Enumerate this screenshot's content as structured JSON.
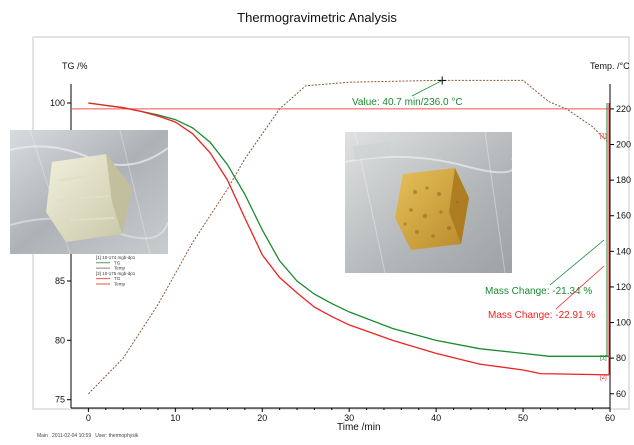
{
  "chart_data": {
    "type": "line",
    "title": "Thermogravimetric Analysis",
    "xlabel": "Time /min",
    "ylabel_left": "TG /%",
    "ylabel_right": "Temp. /°C",
    "xlim": [
      -2,
      60
    ],
    "ylim_left": [
      74.3,
      101.6
    ],
    "ylim_right": [
      52,
      234
    ],
    "x_ticks": [
      0,
      10,
      20,
      30,
      40,
      50,
      60
    ],
    "y_left_ticks": [
      75,
      80,
      85,
      100
    ],
    "y_right_ticks": [
      60,
      80,
      100,
      120,
      140,
      160,
      180,
      200,
      220
    ],
    "grid": false,
    "colors": {
      "axes": "#000000",
      "series_1": "#1a8a2e",
      "series_2": "#ee2222",
      "temperature": "#8a5a3a",
      "reference_line": "#ff4d4d",
      "value_label": "#1a8a2e"
    },
    "series": [
      {
        "name": "[1] 10-174 mgb-dp1 TG",
        "axis": "left",
        "x": [
          0,
          2,
          4,
          6,
          8,
          10,
          12,
          14,
          16,
          18,
          20,
          22,
          24,
          26,
          28,
          30,
          35,
          40,
          45,
          50,
          53,
          60
        ],
        "y": [
          100,
          99.8,
          99.6,
          99.3,
          99.0,
          98.6,
          97.9,
          96.7,
          94.8,
          92.3,
          89.3,
          86.7,
          85.0,
          83.9,
          83.1,
          82.4,
          81.0,
          80.0,
          79.3,
          78.9,
          78.66,
          78.66
        ]
      },
      {
        "name": "[2] 10-175 mgb-dp1 TG",
        "axis": "left",
        "x": [
          0,
          2,
          4,
          6,
          8,
          10,
          12,
          14,
          16,
          18,
          20,
          22,
          24,
          26,
          28,
          30,
          35,
          40,
          45,
          50,
          52,
          60
        ],
        "y": [
          100,
          99.8,
          99.6,
          99.3,
          98.9,
          98.4,
          97.4,
          95.8,
          93.5,
          90.3,
          87.2,
          85.3,
          84.0,
          82.8,
          82.0,
          81.3,
          80.0,
          78.9,
          78.0,
          77.5,
          77.2,
          77.09
        ]
      },
      {
        "name": "Temp",
        "axis": "right",
        "x": [
          0,
          4,
          8,
          12,
          16,
          18,
          20,
          22,
          25,
          30,
          40,
          50,
          51,
          53,
          55,
          58,
          60
        ],
        "y": [
          60,
          80,
          110,
          145,
          175,
          192,
          206,
          220,
          233,
          235,
          236,
          236,
          232,
          224,
          220,
          210,
          200
        ]
      }
    ],
    "reference_line": {
      "axis": "right",
      "y": 220
    },
    "legend": {
      "position": "center-left",
      "entries": [
        "[1] 10-174 mgb-dp1",
        "TG",
        "Temp",
        "[2] 10-175 mgb-dp1",
        "TG",
        "Temp"
      ]
    },
    "annotations": {
      "value": "Value: 40.7 min/236.0 °C",
      "mass_change_1": "Mass Change: -21.34 %",
      "mass_change_2": "Mass Change: -22.91 %",
      "end_marker_1": "[1]",
      "end_marker_2": "[2]",
      "temp_marker_1": "[1]",
      "footer": "Main   2011-02-04 10:59   User: thermophysik"
    },
    "photos": [
      {
        "subject": "pale sample block in plastic bag"
      },
      {
        "subject": "golden porous sample cube in plastic bag"
      }
    ]
  }
}
